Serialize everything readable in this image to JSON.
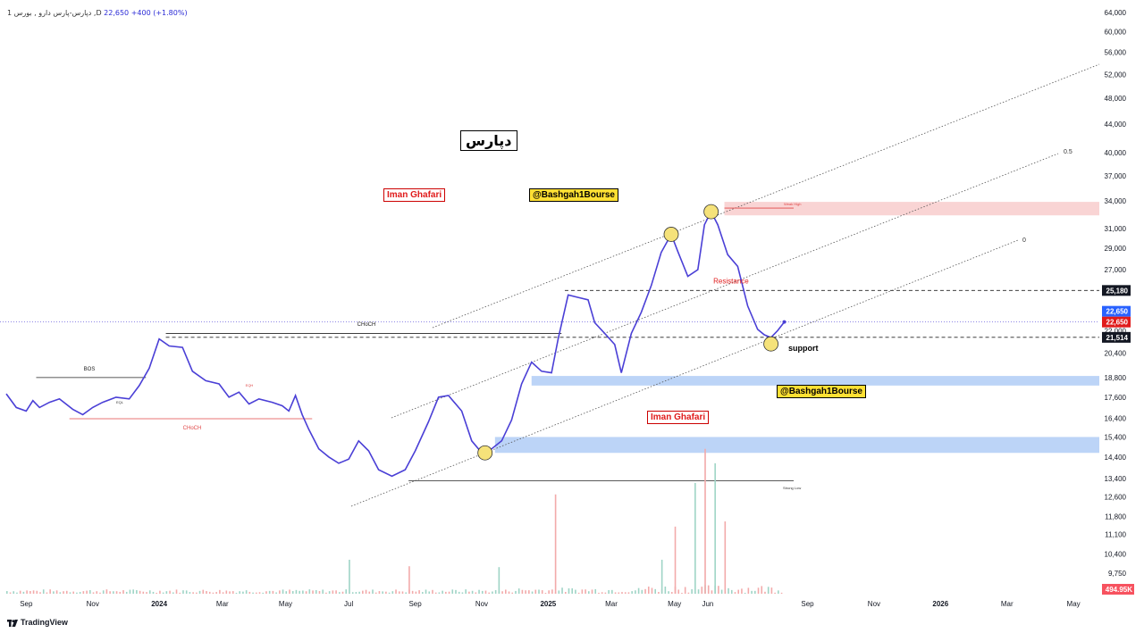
{
  "header": {
    "symbol": "1 دپارس-پارس دارو , بورس ,D",
    "price": "22,650",
    "change": "+400 (+1.80%)"
  },
  "branding": {
    "logo_text": "TradingView"
  },
  "labels": {
    "title": "دپارس",
    "author_1": "Iman Ghafari",
    "author_2": "Iman Ghafari",
    "handle_1": "@Bashgah1Bourse",
    "handle_2": "@Bashgah1Bourse",
    "resistance": "Resistance",
    "support": "support",
    "weak_high": "Weak High",
    "strong_low": "Strong Low",
    "choch_top": "CHoCH",
    "choch_low": "CHoCH",
    "bos": "BOS",
    "eqh": "EQH",
    "eql": "EQL",
    "fib_05": "0.5",
    "fib_0": "0"
  },
  "colors": {
    "price_line": "#4a3fd6",
    "resistance": "#e01b1b",
    "accent_blue": "#2962ff",
    "demand_zone": "#bcd4f7",
    "supply_zone": "#f9d4d4"
  },
  "chart_data": {
    "type": "line",
    "y_scale": "log",
    "y_ticks": [
      9750,
      10400,
      11100,
      11800,
      12600,
      13400,
      14400,
      15400,
      16400,
      17600,
      18800,
      20400,
      22000,
      23500,
      25000,
      27000,
      29000,
      31000,
      34000,
      37000,
      40000,
      44000,
      48000,
      52000,
      56000,
      60000,
      64000
    ],
    "y_tick_labels": [
      "9,750",
      "10,400",
      "11,100",
      "11,800",
      "12,600",
      "13,400",
      "14,400",
      "15,400",
      "16,400",
      "17,600",
      "18,800",
      "20,400",
      "22,000",
      "23,500",
      "25,000",
      "27,000",
      "29,000",
      "31,000",
      "34,000",
      "37,000",
      "40,000",
      "44,000",
      "48,000",
      "52,000",
      "56,000",
      "60,000",
      "64,000"
    ],
    "x_ticks": [
      {
        "label": "Sep",
        "t": 0.6,
        "bold": false
      },
      {
        "label": "Nov",
        "t": 2.6,
        "bold": false
      },
      {
        "label": "2024",
        "t": 4.6,
        "bold": true
      },
      {
        "label": "Mar",
        "t": 6.5,
        "bold": false
      },
      {
        "label": "May",
        "t": 8.4,
        "bold": false
      },
      {
        "label": "Jul",
        "t": 10.3,
        "bold": false
      },
      {
        "label": "Sep",
        "t": 12.3,
        "bold": false
      },
      {
        "label": "Nov",
        "t": 14.3,
        "bold": false
      },
      {
        "label": "2025",
        "t": 16.3,
        "bold": true
      },
      {
        "label": "Mar",
        "t": 18.2,
        "bold": false
      },
      {
        "label": "May",
        "t": 20.1,
        "bold": false
      },
      {
        "label": "Jun",
        "t": 21.1,
        "bold": false
      },
      {
        "label": "Sep",
        "t": 24.1,
        "bold": false
      },
      {
        "label": "Nov",
        "t": 26.1,
        "bold": false
      },
      {
        "label": "2026",
        "t": 28.1,
        "bold": true
      },
      {
        "label": "Mar",
        "t": 30.1,
        "bold": false
      },
      {
        "label": "May",
        "t": 32.1,
        "bold": false
      }
    ],
    "price_points": [
      [
        0,
        17800
      ],
      [
        0.3,
        17000
      ],
      [
        0.6,
        16800
      ],
      [
        0.8,
        17400
      ],
      [
        1,
        17000
      ],
      [
        1.3,
        17300
      ],
      [
        1.6,
        17500
      ],
      [
        2,
        16900
      ],
      [
        2.3,
        16600
      ],
      [
        2.6,
        17000
      ],
      [
        2.9,
        17300
      ],
      [
        3.3,
        17600
      ],
      [
        3.7,
        17500
      ],
      [
        4,
        18300
      ],
      [
        4.3,
        19400
      ],
      [
        4.6,
        21400
      ],
      [
        4.9,
        20900
      ],
      [
        5.3,
        20800
      ],
      [
        5.6,
        19200
      ],
      [
        6,
        18600
      ],
      [
        6.4,
        18400
      ],
      [
        6.7,
        17600
      ],
      [
        7,
        17900
      ],
      [
        7.3,
        17200
      ],
      [
        7.6,
        17500
      ],
      [
        8,
        17300
      ],
      [
        8.3,
        17100
      ],
      [
        8.5,
        16800
      ],
      [
        8.7,
        17700
      ],
      [
        8.9,
        16600
      ],
      [
        9.1,
        15800
      ],
      [
        9.4,
        14800
      ],
      [
        9.7,
        14400
      ],
      [
        10,
        14100
      ],
      [
        10.3,
        14300
      ],
      [
        10.6,
        15200
      ],
      [
        10.9,
        14700
      ],
      [
        11.2,
        13800
      ],
      [
        11.6,
        13500
      ],
      [
        12,
        13800
      ],
      [
        12.3,
        14700
      ],
      [
        12.7,
        16200
      ],
      [
        13,
        17600
      ],
      [
        13.3,
        17700
      ],
      [
        13.7,
        16800
      ],
      [
        14,
        15200
      ],
      [
        14.3,
        14600
      ],
      [
        14.6,
        14800
      ],
      [
        14.9,
        15200
      ],
      [
        15.2,
        16300
      ],
      [
        15.5,
        18400
      ],
      [
        15.8,
        19800
      ],
      [
        16.1,
        19200
      ],
      [
        16.4,
        19100
      ],
      [
        16.6,
        21400
      ],
      [
        16.9,
        24800
      ],
      [
        17.2,
        24600
      ],
      [
        17.5,
        24400
      ],
      [
        17.7,
        22600
      ],
      [
        18,
        21800
      ],
      [
        18.3,
        21000
      ],
      [
        18.5,
        19100
      ],
      [
        18.8,
        21800
      ],
      [
        19.1,
        23400
      ],
      [
        19.4,
        25600
      ],
      [
        19.7,
        28600
      ],
      [
        20,
        30400
      ],
      [
        20.2,
        28700
      ],
      [
        20.5,
        26400
      ],
      [
        20.8,
        27000
      ],
      [
        21,
        31400
      ],
      [
        21.2,
        32800
      ],
      [
        21.4,
        31400
      ],
      [
        21.7,
        28400
      ],
      [
        22,
        27300
      ],
      [
        22.3,
        23900
      ],
      [
        22.6,
        22100
      ],
      [
        22.8,
        21700
      ],
      [
        23,
        21500
      ],
      [
        23.2,
        22000
      ],
      [
        23.4,
        22650
      ]
    ],
    "volume_spikes": [
      [
        10.3,
        10200
      ],
      [
        12.1,
        9980
      ],
      [
        14.8,
        9950
      ],
      [
        16.5,
        12700
      ],
      [
        19.7,
        10200
      ],
      [
        20.1,
        11400
      ],
      [
        20.7,
        13200
      ],
      [
        21,
        14800
      ],
      [
        21.3,
        14100
      ],
      [
        21.6,
        11600
      ]
    ],
    "horizontal_levels": [
      {
        "name": "Resistance",
        "value": 25180,
        "label": "25,180"
      },
      {
        "name": "support",
        "value": 21514,
        "label": "21,514"
      },
      {
        "name": "last_price",
        "value": 22650,
        "label": "22,650"
      },
      {
        "name": "Weak High",
        "value": 33400
      },
      {
        "name": "Strong Low",
        "value": 13300
      },
      {
        "name": "CHoCH",
        "value": 21800
      },
      {
        "name": "BOS",
        "value": 18800
      }
    ],
    "zones": [
      {
        "name": "supply",
        "from": 32400,
        "to": 33900
      },
      {
        "name": "demand_upper",
        "from": 18300,
        "to": 18900
      },
      {
        "name": "demand_lower",
        "from": 14600,
        "to": 15400
      }
    ],
    "volume_label": "494.95K",
    "title": "دپارس"
  }
}
